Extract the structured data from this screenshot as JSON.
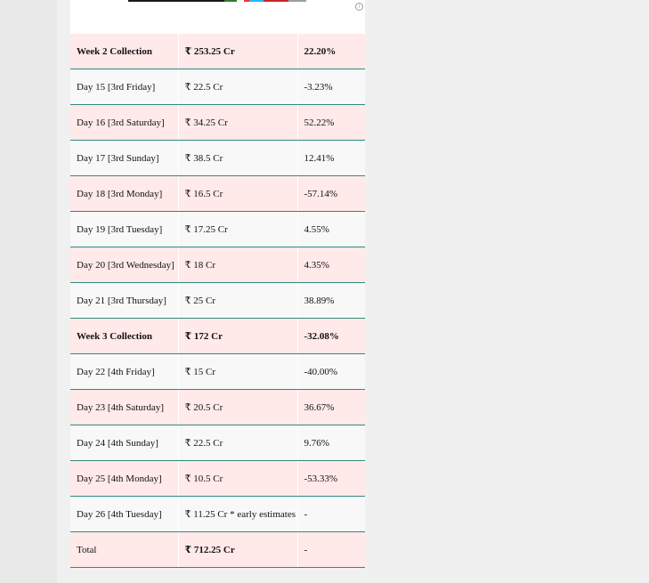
{
  "ad": {
    "bar_colors": [
      "#1a1a1a",
      "#2e7d32",
      "#1a1a1a",
      "#e53935",
      "#29b6f6",
      "#c62828",
      "#9e9e9e"
    ],
    "icon": "adchoices-icon"
  },
  "rows": [
    {
      "day": "Week 2 Collection",
      "amount": "₹ 253.25 Cr",
      "change": "22.20%",
      "bold": true
    },
    {
      "day": "Day 15 [3rd Friday]",
      "amount": "₹ 22.5 Cr",
      "change": "-3.23%"
    },
    {
      "day": "Day 16 [3rd Saturday]",
      "amount": "₹ 34.25 Cr",
      "change": "52.22%"
    },
    {
      "day": "Day 17 [3rd Sunday]",
      "amount": "₹ 38.5 Cr",
      "change": "12.41%"
    },
    {
      "day": "Day 18 [3rd Monday]",
      "amount": "₹ 16.5 Cr",
      "change": "-57.14%"
    },
    {
      "day": "Day 19 [3rd Tuesday]",
      "amount": "₹ 17.25 Cr",
      "change": "4.55%"
    },
    {
      "day": "Day 20 [3rd Wednesday]",
      "amount": "₹ 18 Cr",
      "change": "4.35%"
    },
    {
      "day": "Day 21 [3rd Thursday]",
      "amount": "₹ 25 Cr",
      "change": "38.89%"
    },
    {
      "day": "Week 3 Collection",
      "amount": "₹ 172 Cr",
      "change": "-32.08%",
      "bold": true
    },
    {
      "day": "Day 22 [4th Friday]",
      "amount": "₹ 15 Cr",
      "change": "-40.00%"
    },
    {
      "day": "Day 23 [4th Saturday]",
      "amount": "₹ 20.5 Cr",
      "change": "36.67%"
    },
    {
      "day": "Day 24 [4th Sunday]",
      "amount": "₹ 22.5 Cr",
      "change": "9.76%"
    },
    {
      "day": "Day 25 [4th Monday]",
      "amount": "₹ 10.5 Cr",
      "change": "-53.33%"
    },
    {
      "day": "Day 26 [4th Tuesday]",
      "amount": "₹ 11.25 Cr * early estimates",
      "change": "-"
    },
    {
      "day": "Total",
      "amount": "₹ 712.25 Cr",
      "change": "-",
      "bold_amount": true
    }
  ]
}
